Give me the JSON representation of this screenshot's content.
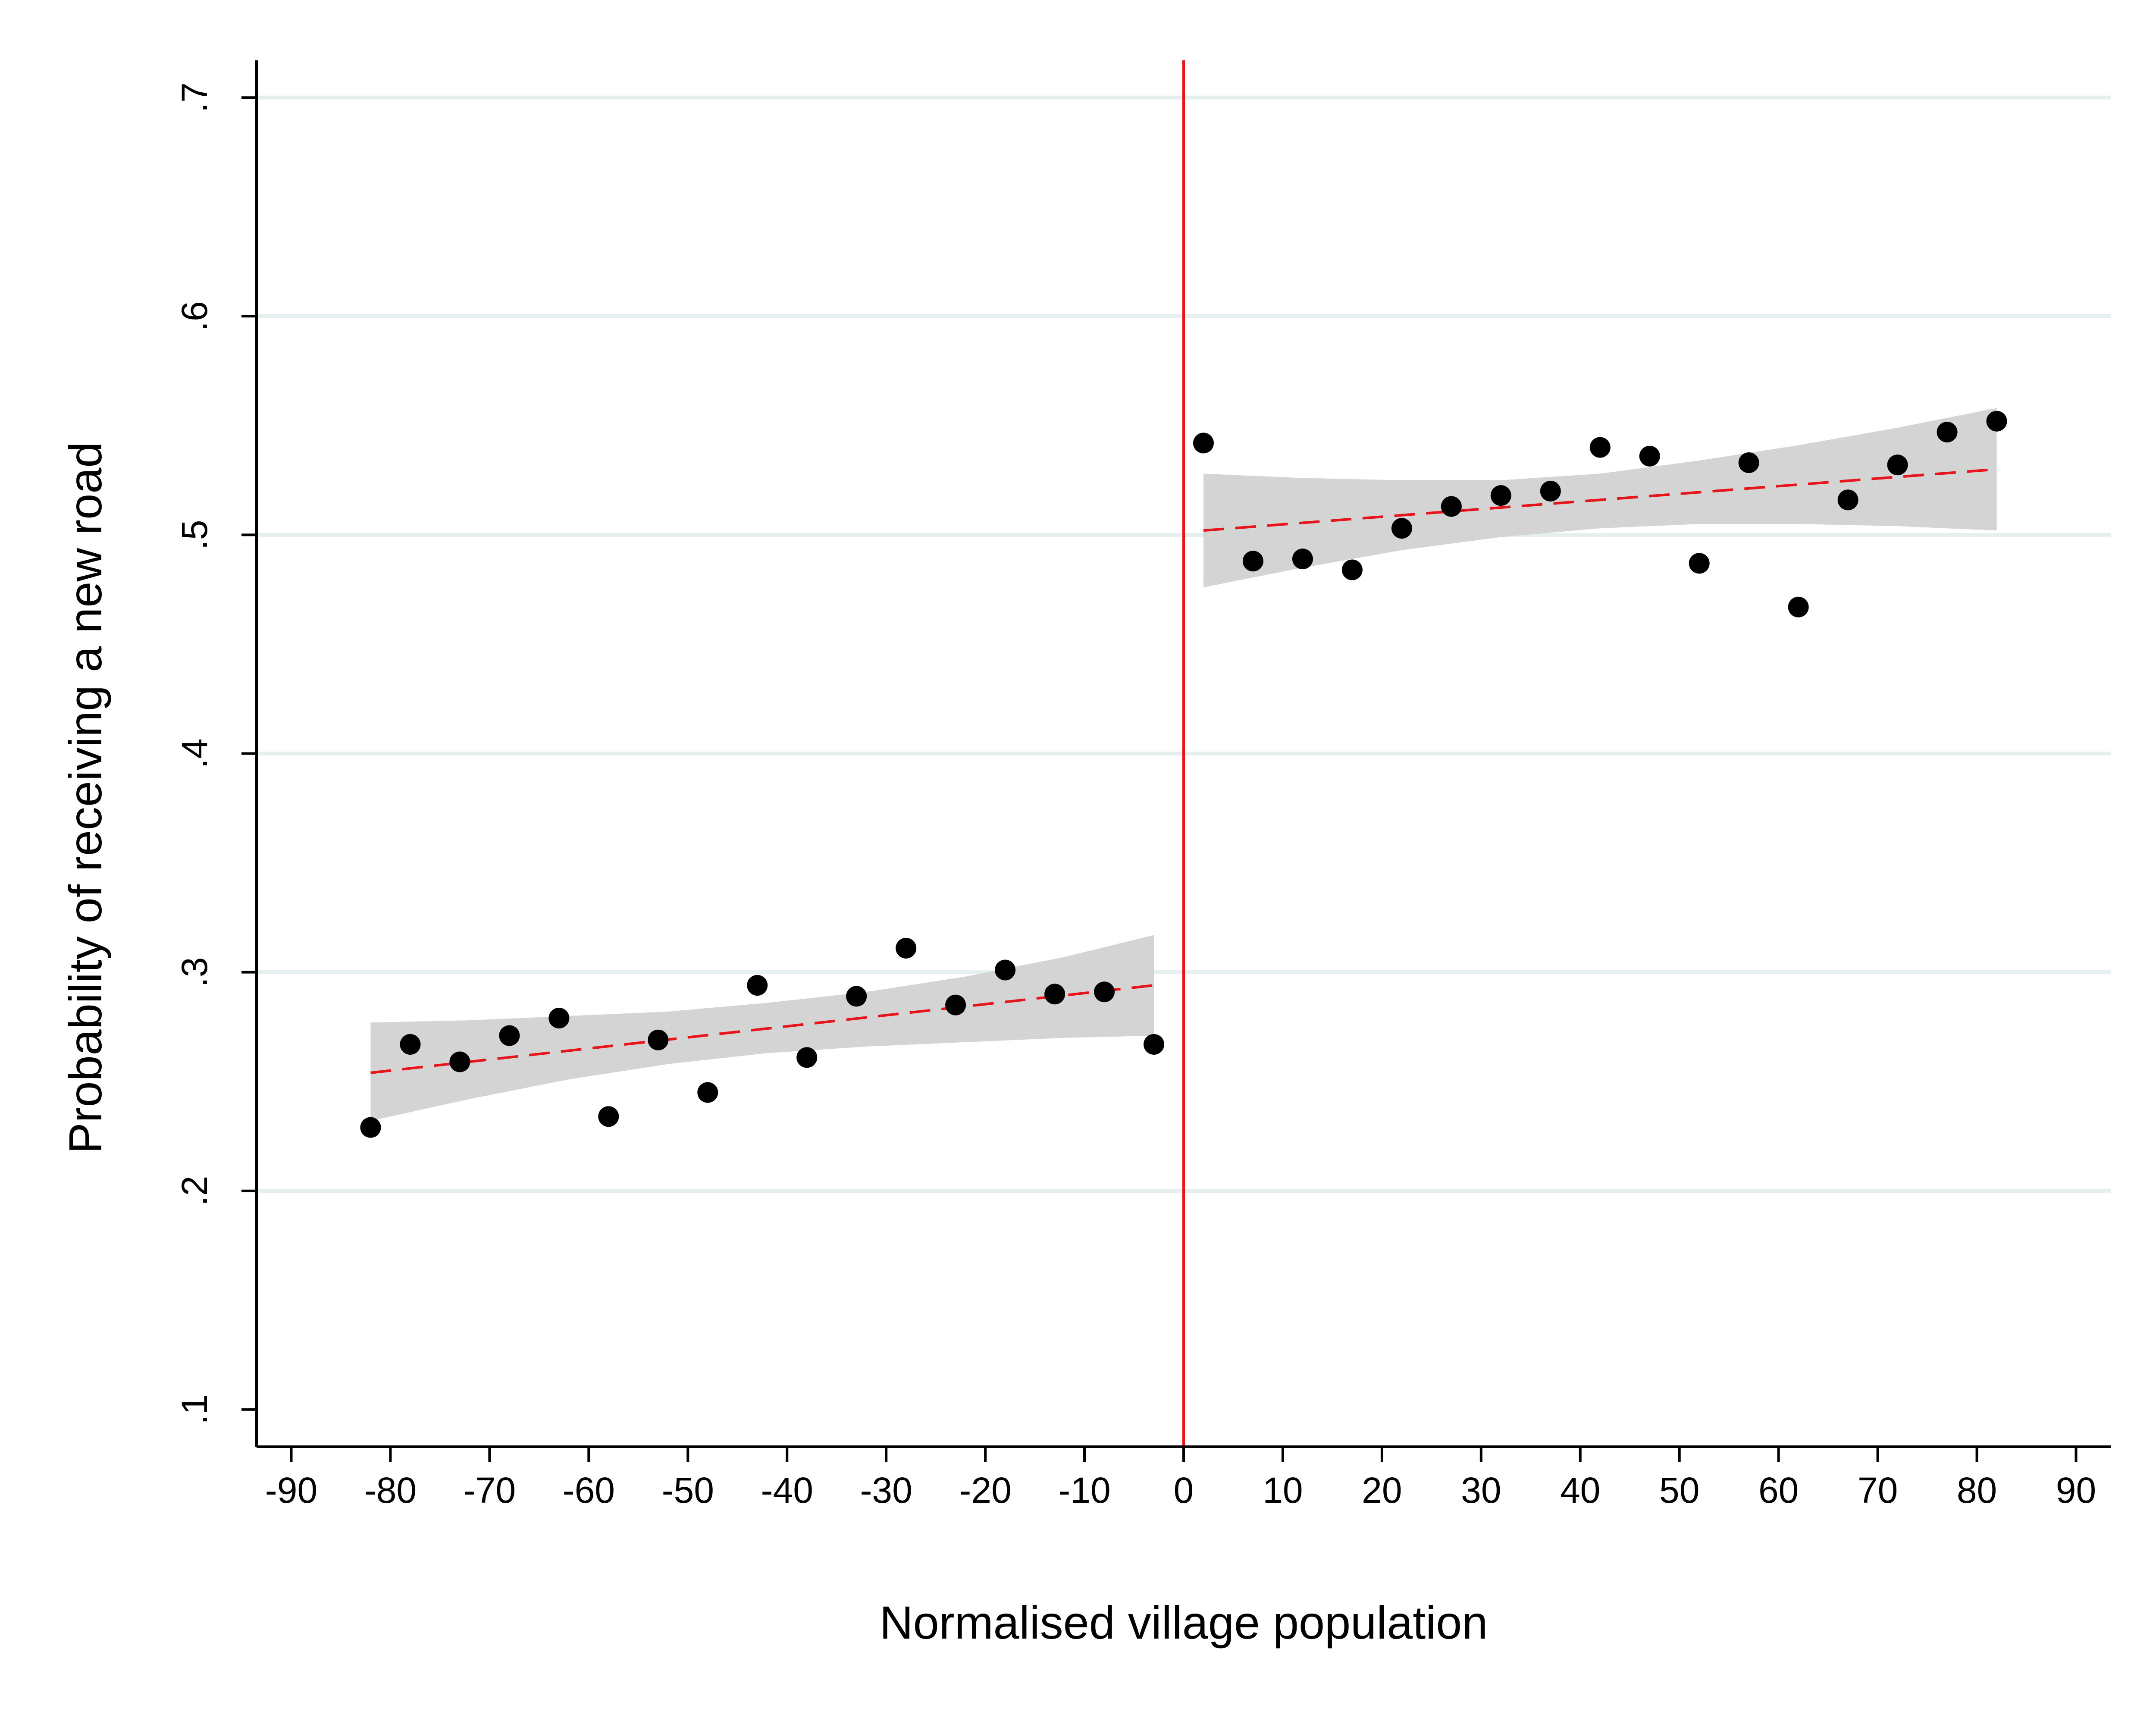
{
  "chart_data": {
    "type": "scatter",
    "title": "",
    "xlabel": "Normalised village population",
    "ylabel": "Probability of receiving a new road",
    "xlim": [
      -93.5,
      93.5
    ],
    "ylim": [
      0.083,
      0.717
    ],
    "x_ticks": [
      -90,
      -80,
      -70,
      -60,
      -50,
      -40,
      -30,
      -20,
      -10,
      0,
      10,
      20,
      30,
      40,
      50,
      60,
      70,
      80,
      90
    ],
    "x_tick_labels": [
      "-90",
      "-80",
      "-70",
      "-60",
      "-50",
      "-40",
      "-30",
      "-20",
      "-10",
      "0",
      "10",
      "20",
      "30",
      "40",
      "50",
      "60",
      "70",
      "80",
      "90"
    ],
    "y_ticks": [
      0.1,
      0.2,
      0.3,
      0.4,
      0.5,
      0.6,
      0.7
    ],
    "y_tick_labels": [
      ".1",
      ".2",
      ".3",
      ".4",
      ".5",
      ".6",
      ".7"
    ],
    "grid": "horizontal",
    "threshold_x": 0,
    "colors": {
      "points": "#000000",
      "fit_line": "#e8141c",
      "threshold_line": "#e8141c",
      "confidence_band": "#d4d4d4",
      "grid": "#e6efef"
    },
    "series": [
      {
        "side": "left",
        "points": [
          {
            "x": -82,
            "y": 0.229
          },
          {
            "x": -78,
            "y": 0.267
          },
          {
            "x": -73,
            "y": 0.259
          },
          {
            "x": -68,
            "y": 0.271
          },
          {
            "x": -63,
            "y": 0.279
          },
          {
            "x": -58,
            "y": 0.234
          },
          {
            "x": -53,
            "y": 0.269
          },
          {
            "x": -48,
            "y": 0.245
          },
          {
            "x": -43,
            "y": 0.294
          },
          {
            "x": -38,
            "y": 0.261
          },
          {
            "x": -33,
            "y": 0.289
          },
          {
            "x": -28,
            "y": 0.311
          },
          {
            "x": -23,
            "y": 0.285
          },
          {
            "x": -18,
            "y": 0.301
          },
          {
            "x": -13,
            "y": 0.29
          },
          {
            "x": -8,
            "y": 0.291
          },
          {
            "x": -3,
            "y": 0.267
          }
        ],
        "fit": {
          "x0": -82,
          "y0": 0.254,
          "x1": -3,
          "y1": 0.294
        },
        "band": {
          "x": [
            -82,
            -72,
            -62,
            -52,
            -42,
            -32,
            -22,
            -12,
            -3
          ],
          "upper": [
            0.277,
            0.278,
            0.28,
            0.282,
            0.286,
            0.291,
            0.298,
            0.307,
            0.317
          ],
          "lower": [
            0.232,
            0.242,
            0.251,
            0.258,
            0.263,
            0.266,
            0.268,
            0.27,
            0.271
          ]
        }
      },
      {
        "side": "right",
        "points": [
          {
            "x": 2,
            "y": 0.542
          },
          {
            "x": 7,
            "y": 0.488
          },
          {
            "x": 12,
            "y": 0.489
          },
          {
            "x": 17,
            "y": 0.484
          },
          {
            "x": 22,
            "y": 0.503
          },
          {
            "x": 27,
            "y": 0.513
          },
          {
            "x": 32,
            "y": 0.518
          },
          {
            "x": 37,
            "y": 0.52
          },
          {
            "x": 42,
            "y": 0.54
          },
          {
            "x": 47,
            "y": 0.536
          },
          {
            "x": 52,
            "y": 0.487
          },
          {
            "x": 57,
            "y": 0.533
          },
          {
            "x": 62,
            "y": 0.467
          },
          {
            "x": 67,
            "y": 0.516
          },
          {
            "x": 72,
            "y": 0.532
          },
          {
            "x": 77,
            "y": 0.547
          },
          {
            "x": 82,
            "y": 0.552
          }
        ],
        "fit": {
          "x0": 2,
          "y0": 0.502,
          "x1": 82,
          "y1": 0.53
        },
        "band": {
          "x": [
            2,
            12,
            22,
            32,
            42,
            52,
            62,
            72,
            82
          ],
          "upper": [
            0.528,
            0.526,
            0.525,
            0.525,
            0.528,
            0.534,
            0.541,
            0.549,
            0.558
          ],
          "lower": [
            0.476,
            0.485,
            0.493,
            0.499,
            0.503,
            0.505,
            0.505,
            0.504,
            0.502
          ]
        }
      }
    ]
  }
}
